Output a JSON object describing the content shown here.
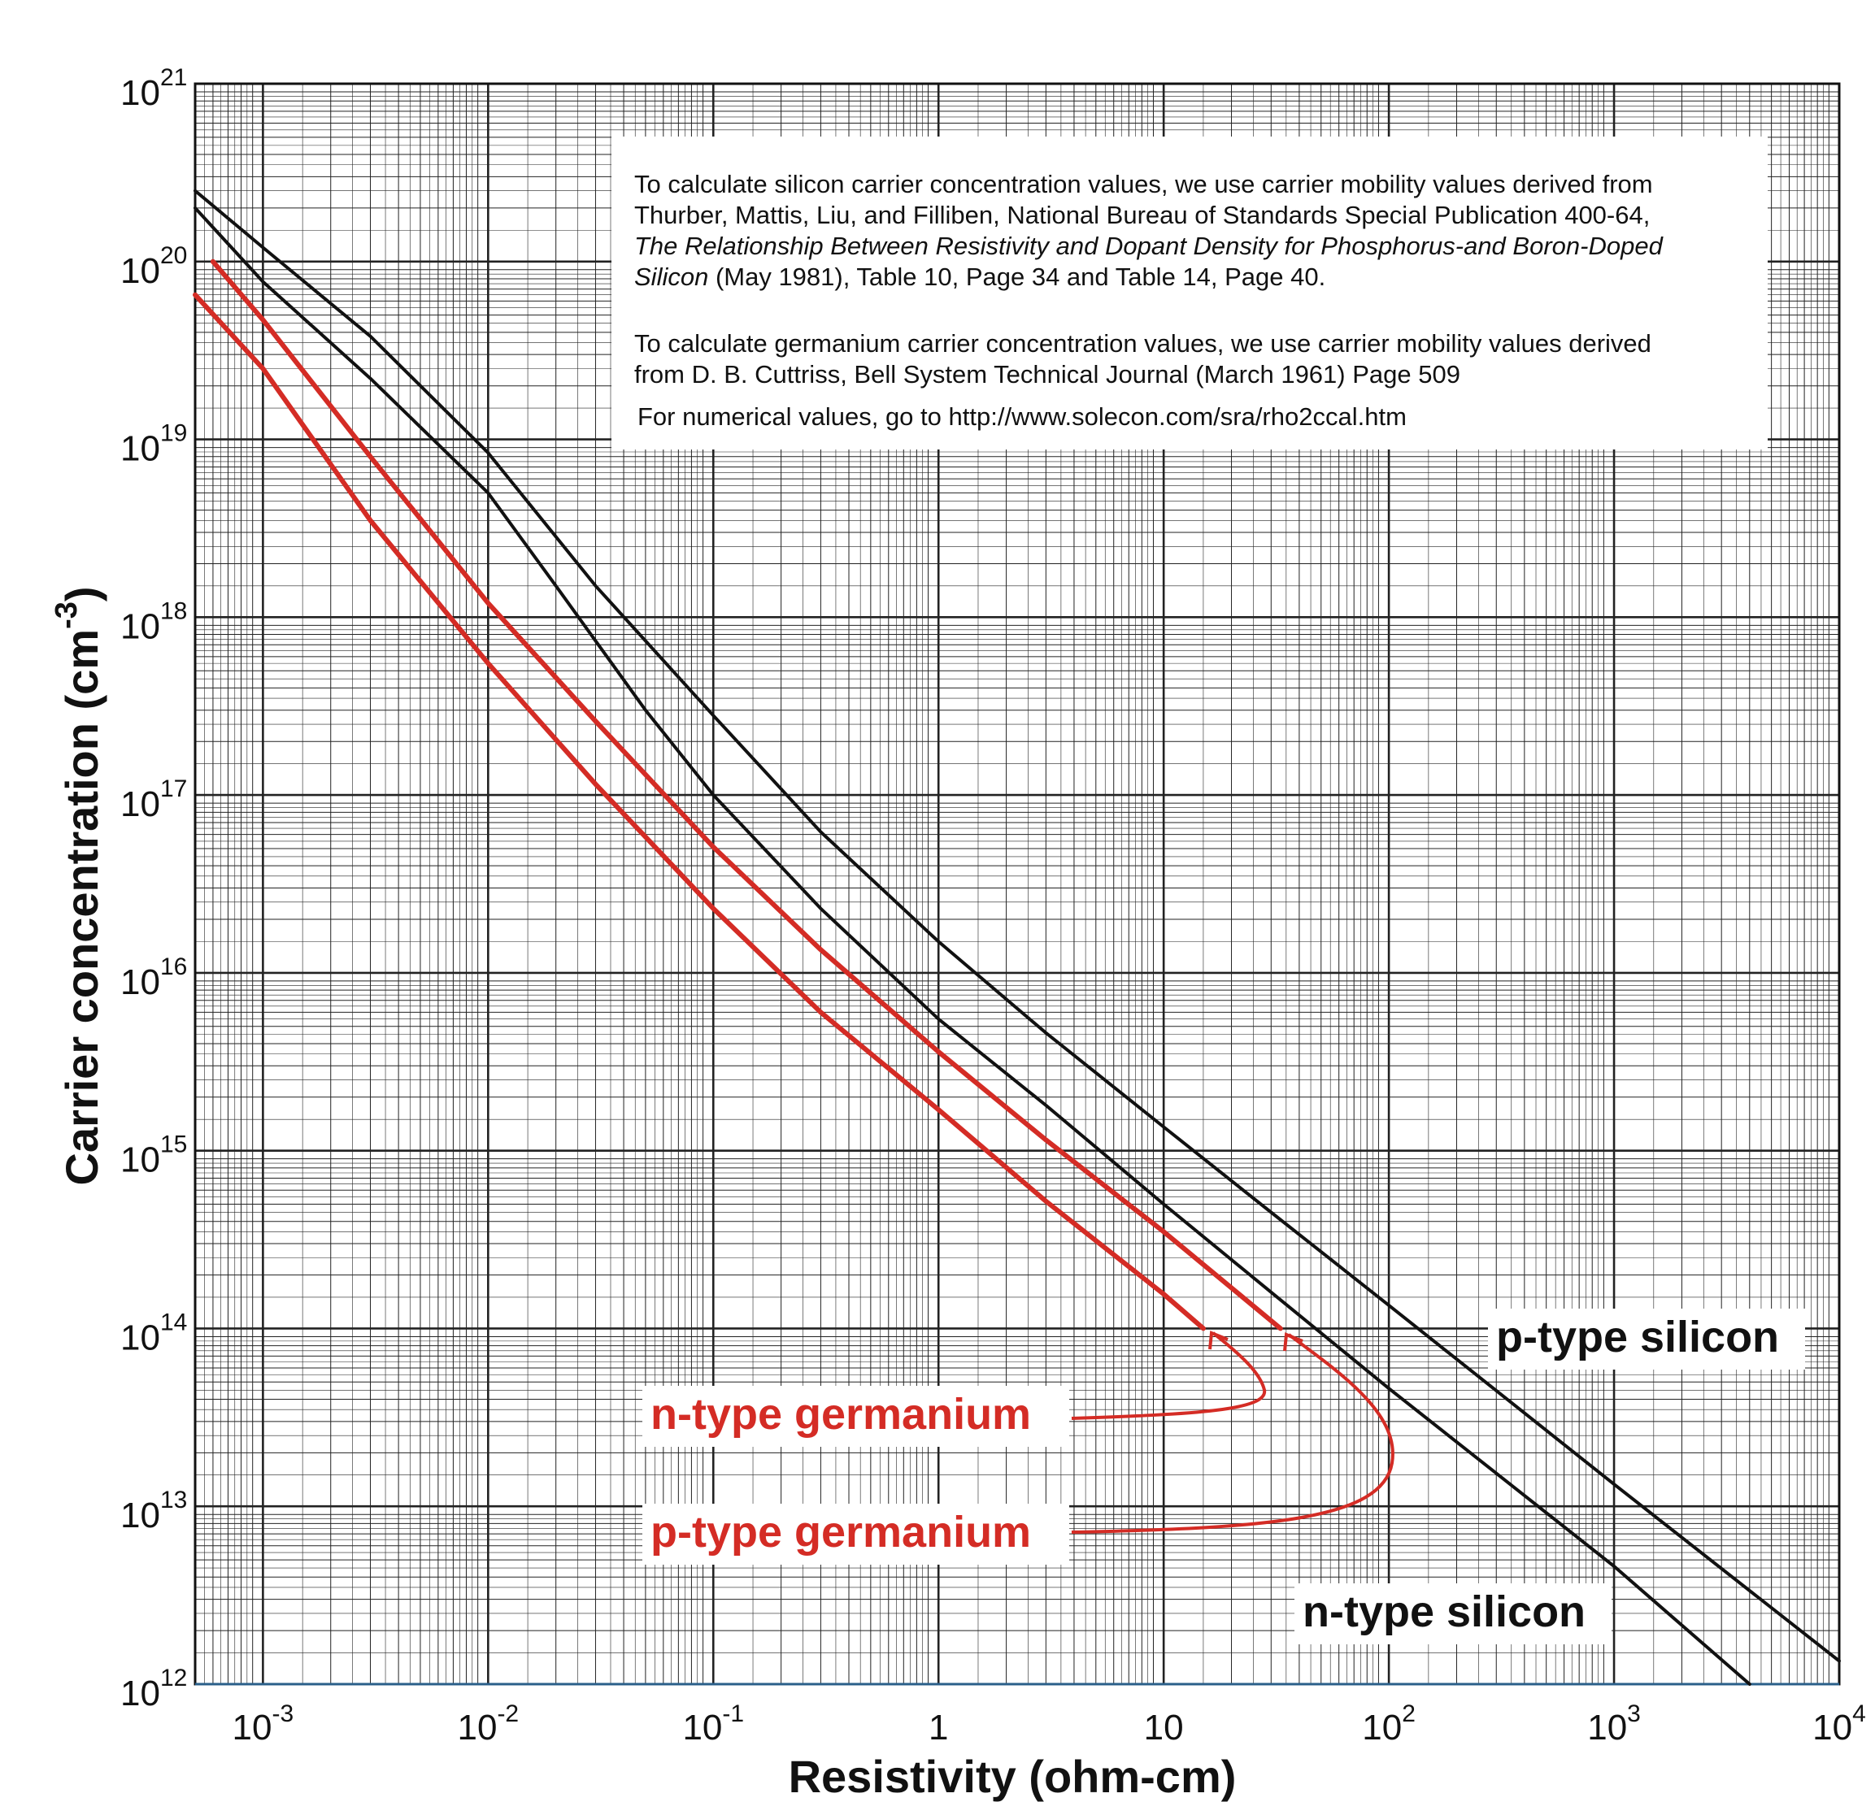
{
  "chart_data": {
    "type": "line",
    "xlabel": "Resistivity (ohm-cm)",
    "ylabel_main": "Carrier concentration (cm",
    "ylabel_sup": "-3",
    "ylabel_close": ")",
    "x_scale": "log",
    "y_scale": "log",
    "xlim": [
      0.0005,
      10000
    ],
    "ylim": [
      1000000000000.0,
      1e+21
    ],
    "grid": true,
    "x_ticks": [
      {
        "base": "10",
        "exp": "-3",
        "value": 0.001
      },
      {
        "base": "10",
        "exp": "-2",
        "value": 0.01
      },
      {
        "base": "10",
        "exp": "-1",
        "value": 0.1
      },
      {
        "base": "1",
        "exp": "",
        "value": 1
      },
      {
        "base": "10",
        "exp": "",
        "value": 10
      },
      {
        "base": "10",
        "exp": "2",
        "value": 100
      },
      {
        "base": "10",
        "exp": "3",
        "value": 1000
      },
      {
        "base": "10",
        "exp": "4",
        "value": 10000
      }
    ],
    "y_ticks": [
      {
        "base": "10",
        "exp": "12",
        "value": 1000000000000.0
      },
      {
        "base": "10",
        "exp": "13",
        "value": 10000000000000.0
      },
      {
        "base": "10",
        "exp": "14",
        "value": 100000000000000.0
      },
      {
        "base": "10",
        "exp": "15",
        "value": 1000000000000000.0
      },
      {
        "base": "10",
        "exp": "16",
        "value": 1e+16
      },
      {
        "base": "10",
        "exp": "17",
        "value": 1e+17
      },
      {
        "base": "10",
        "exp": "18",
        "value": 1e+18
      },
      {
        "base": "10",
        "exp": "19",
        "value": 1e+19
      },
      {
        "base": "10",
        "exp": "20",
        "value": 1e+20
      },
      {
        "base": "10",
        "exp": "21",
        "value": 1e+21
      }
    ],
    "series": [
      {
        "name": "p-type silicon",
        "color": "#111111",
        "points": [
          [
            0.0005,
            2.5e+20
          ],
          [
            0.001,
            1.2e+20
          ],
          [
            0.003,
            3.8e+19
          ],
          [
            0.01,
            8.4e+18
          ],
          [
            0.03,
            1.5e+18
          ],
          [
            0.1,
            2.8e+17
          ],
          [
            0.3,
            6.2e+16
          ],
          [
            1,
            1.5e+16
          ],
          [
            3,
            4600000000000000.0
          ],
          [
            10,
            1360000000000000.0
          ],
          [
            30,
            450000000000000.0
          ],
          [
            100,
            135000000000000.0
          ],
          [
            1000,
            13300000000000.0
          ],
          [
            10000,
            1350000000000.0
          ]
        ]
      },
      {
        "name": "n-type silicon",
        "color": "#111111",
        "points": [
          [
            0.0005,
            2e+20
          ],
          [
            0.001,
            7.7e+19
          ],
          [
            0.003,
            2.2e+19
          ],
          [
            0.01,
            5e+18
          ],
          [
            0.02,
            1.5e+18
          ],
          [
            0.05,
            3e+17
          ],
          [
            0.1,
            1e+17
          ],
          [
            0.3,
            2.3e+16
          ],
          [
            1,
            5500000000000000.0
          ],
          [
            3,
            1800000000000000.0
          ],
          [
            10,
            500000000000000.0
          ],
          [
            30,
            160000000000000.0
          ],
          [
            100,
            46000000000000.0
          ],
          [
            1000,
            4600000000000.0
          ],
          [
            4000,
            1000000000000.0
          ]
        ]
      },
      {
        "name": "p-type germanium",
        "color": "#d42c25",
        "points": [
          [
            0.0006,
            1e+20
          ],
          [
            0.001,
            4.7e+19
          ],
          [
            0.003,
            8e+18
          ],
          [
            0.01,
            1.2e+18
          ],
          [
            0.03,
            2.6e+17
          ],
          [
            0.1,
            5.1e+16
          ],
          [
            0.3,
            1.35e+16
          ],
          [
            1,
            3600000000000000.0
          ],
          [
            3,
            1150000000000000.0
          ],
          [
            10,
            350000000000000.0
          ],
          [
            33,
            100000000000000.0
          ]
        ]
      },
      {
        "name": "n-type germanium",
        "color": "#d42c25",
        "points": [
          [
            0.0005,
            6.5e+19
          ],
          [
            0.001,
            2.5e+19
          ],
          [
            0.003,
            3.5e+18
          ],
          [
            0.01,
            5.5e+17
          ],
          [
            0.03,
            1.15e+17
          ],
          [
            0.1,
            2.3e+16
          ],
          [
            0.3,
            6000000000000000.0
          ],
          [
            1,
            1700000000000000.0
          ],
          [
            3,
            520000000000000.0
          ],
          [
            10,
            156000000000000.0
          ],
          [
            15,
            100000000000000.0
          ]
        ]
      }
    ]
  },
  "note": {
    "para1": [
      {
        "parts": [
          {
            "t": "To calculate silicon carrier concentration values, we use carrier mobility values derived from",
            "i": false
          }
        ]
      },
      {
        "parts": [
          {
            "t": "Thurber, Mattis, Liu, and Filliben, National Bureau of Standards Special Publication 400-64,",
            "i": false
          }
        ]
      },
      {
        "parts": [
          {
            "t": "The Relationship Between Resistivity and Dopant Density for Phosphorus-and Boron-Doped",
            "i": true
          }
        ]
      },
      {
        "parts": [
          {
            "t": "Silicon",
            "i": true
          },
          {
            "t": " (May 1981), Table 10, Page 34 and Table 14, Page 40.",
            "i": false
          }
        ]
      }
    ],
    "para2": [
      {
        "parts": [
          {
            "t": "To calculate germanium carrier concentration values, we use carrier mobility values derived",
            "i": false
          }
        ]
      },
      {
        "parts": [
          {
            "t": "from D. B. Cuttriss, Bell System Technical Journal (March 1961) Page 509",
            "i": false
          }
        ]
      }
    ],
    "para3": [
      {
        "parts": [
          {
            "t": "For numerical values, go to http://www.solecon.com/sra/rho2ccal.htm",
            "i": false
          }
        ]
      }
    ]
  },
  "labels": {
    "p_si": "p-type silicon",
    "n_si": "n-type silicon",
    "n_ge": "n-type germanium",
    "p_ge": "p-type germanium"
  },
  "colors": {
    "silicon": "#111111",
    "germanium": "#d42c25",
    "grid": "#222222"
  }
}
